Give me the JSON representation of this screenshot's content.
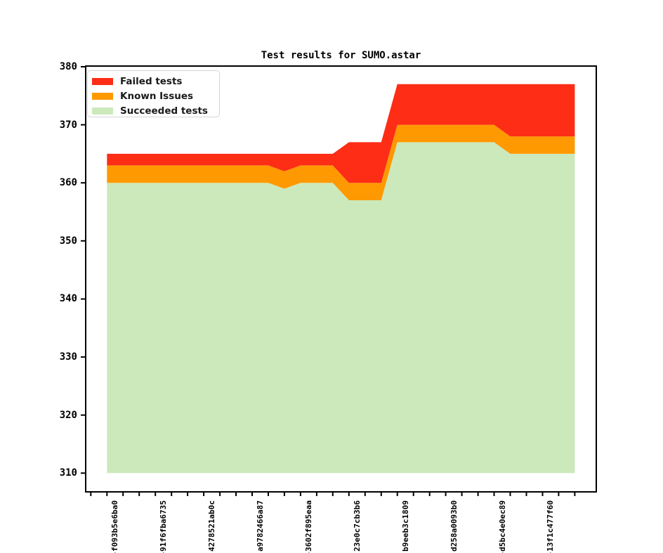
{
  "title": "Test results for SUMO.astar",
  "legend": {
    "items": [
      {
        "label": "Failed tests",
        "color": "#fd2d16"
      },
      {
        "label": "Known Issues",
        "color": "#ff9901"
      },
      {
        "label": "Succeeded tests",
        "color": "#cce9bc"
      }
    ]
  },
  "chart_data": {
    "type": "area",
    "stacked": true,
    "title": "Test results for SUMO.astar",
    "xlabel": "",
    "ylabel": "",
    "ylim": [
      310,
      380
    ],
    "y_ticks": [
      310,
      320,
      330,
      340,
      350,
      360,
      370,
      380
    ],
    "grid": false,
    "legend_position": "upper left",
    "n_points": 30,
    "label_every": 3,
    "x_tick_labels": [
      "-f093b5e6ba0",
      "-91f6fba6735",
      "4278521ab0c",
      "a9782466a87",
      "-3602f895eaa",
      "23e0c7cb3b6",
      "b9eeb3c1809",
      "d258a0093b0",
      "-d5bc4e0ec89",
      "-13f1c477f60"
    ],
    "series": [
      {
        "name": "Succeeded tests",
        "color": "#cce9bc",
        "values": [
          360,
          360,
          360,
          360,
          360,
          360,
          360,
          360,
          360,
          360,
          360,
          359,
          360,
          360,
          360,
          357,
          357,
          357,
          367,
          367,
          367,
          367,
          367,
          367,
          367,
          365,
          365,
          365,
          365,
          365
        ]
      },
      {
        "name": "Known Issues",
        "color": "#ff9901",
        "values": [
          3,
          3,
          3,
          3,
          3,
          3,
          3,
          3,
          3,
          3,
          3,
          3,
          3,
          3,
          3,
          3,
          3,
          3,
          3,
          3,
          3,
          3,
          3,
          3,
          3,
          3,
          3,
          3,
          3,
          3
        ]
      },
      {
        "name": "Failed tests",
        "color": "#fd2d16",
        "values": [
          2,
          2,
          2,
          2,
          2,
          2,
          2,
          2,
          2,
          2,
          2,
          3,
          2,
          2,
          2,
          7,
          7,
          7,
          7,
          7,
          7,
          7,
          7,
          7,
          7,
          9,
          9,
          9,
          9,
          9
        ]
      }
    ]
  }
}
